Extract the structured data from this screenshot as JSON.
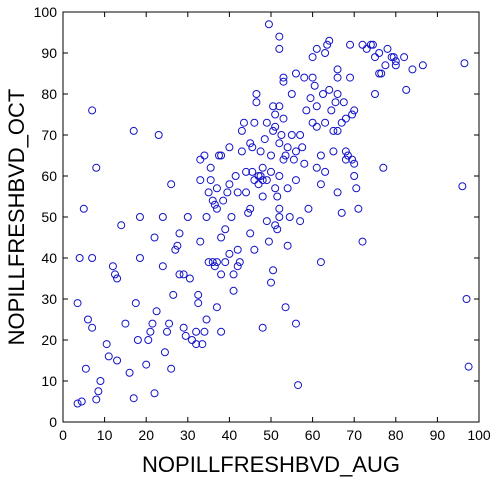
{
  "chart_data": {
    "type": "scatter",
    "xlabel": "NOPILLFRESHBVD_AUG",
    "ylabel": "NOPILLFRESHBVD_OCT",
    "xlim": [
      0,
      100
    ],
    "ylim": [
      0,
      100
    ],
    "xticks": [
      "0",
      "10",
      "20",
      "30",
      "40",
      "50",
      "60",
      "70",
      "80",
      "90",
      "100"
    ],
    "yticks": [
      "0",
      "10",
      "20",
      "30",
      "40",
      "50",
      "60",
      "70",
      "80",
      "90",
      "100"
    ],
    "grid": false,
    "marker": "circle",
    "color": "#1414c8",
    "points": [
      [
        3.5,
        4.5
      ],
      [
        4.5,
        5
      ],
      [
        4,
        40
      ],
      [
        3.5,
        29
      ],
      [
        5.5,
        13
      ],
      [
        5,
        52
      ],
      [
        7,
        40
      ],
      [
        6,
        25
      ],
      [
        7,
        23
      ],
      [
        7,
        76
      ],
      [
        8,
        62
      ],
      [
        8,
        5.5
      ],
      [
        8.5,
        7.5
      ],
      [
        9,
        10
      ],
      [
        10.5,
        19
      ],
      [
        11,
        16
      ],
      [
        12,
        38
      ],
      [
        12.5,
        36
      ],
      [
        13,
        35
      ],
      [
        13,
        15
      ],
      [
        14,
        48
      ],
      [
        15,
        24
      ],
      [
        16,
        12
      ],
      [
        17,
        5.8
      ],
      [
        17,
        71
      ],
      [
        17.5,
        29
      ],
      [
        18,
        20
      ],
      [
        18.5,
        50
      ],
      [
        18.5,
        40
      ],
      [
        20,
        14
      ],
      [
        20.5,
        20
      ],
      [
        21,
        22
      ],
      [
        21.5,
        24
      ],
      [
        22,
        7
      ],
      [
        22,
        45
      ],
      [
        22.5,
        27
      ],
      [
        23,
        70
      ],
      [
        24,
        38
      ],
      [
        24,
        50
      ],
      [
        24.5,
        17
      ],
      [
        25,
        22
      ],
      [
        25.5,
        24
      ],
      [
        26,
        58
      ],
      [
        26,
        13
      ],
      [
        26.5,
        31
      ],
      [
        27,
        42
      ],
      [
        27.5,
        43
      ],
      [
        28,
        36
      ],
      [
        28,
        46
      ],
      [
        29,
        36
      ],
      [
        29,
        23
      ],
      [
        29.5,
        21
      ],
      [
        30,
        50
      ],
      [
        30.5,
        35
      ],
      [
        31,
        20
      ],
      [
        32,
        19
      ],
      [
        32,
        22
      ],
      [
        32.5,
        29
      ],
      [
        32.5,
        31
      ],
      [
        33,
        64
      ],
      [
        33,
        59
      ],
      [
        33,
        44
      ],
      [
        33.5,
        19
      ],
      [
        34,
        65
      ],
      [
        34,
        22
      ],
      [
        34.5,
        50
      ],
      [
        34.5,
        25
      ],
      [
        35,
        56
      ],
      [
        35,
        39
      ],
      [
        35.5,
        59
      ],
      [
        35.5,
        62
      ],
      [
        36,
        54
      ],
      [
        36,
        39
      ],
      [
        36.5,
        53
      ],
      [
        36.5,
        38
      ],
      [
        37,
        57
      ],
      [
        37,
        52
      ],
      [
        37,
        39
      ],
      [
        37,
        28
      ],
      [
        37.5,
        65
      ],
      [
        38,
        65
      ],
      [
        38,
        45
      ],
      [
        38,
        36
      ],
      [
        38,
        22
      ],
      [
        38.5,
        54
      ],
      [
        39,
        47
      ],
      [
        39,
        39
      ],
      [
        39.5,
        56
      ],
      [
        40,
        67
      ],
      [
        40,
        58
      ],
      [
        40,
        41
      ],
      [
        40.5,
        50
      ],
      [
        41,
        36
      ],
      [
        41,
        32
      ],
      [
        41.5,
        60
      ],
      [
        42,
        38
      ],
      [
        42,
        56
      ],
      [
        42,
        42
      ],
      [
        42.5,
        39
      ],
      [
        43,
        71
      ],
      [
        43,
        66
      ],
      [
        43.5,
        73
      ],
      [
        44,
        61
      ],
      [
        44,
        56
      ],
      [
        44.5,
        51
      ],
      [
        45,
        68
      ],
      [
        45,
        52
      ],
      [
        45,
        46
      ],
      [
        45.5,
        61
      ],
      [
        45.5,
        67
      ],
      [
        46,
        73
      ],
      [
        46,
        59
      ],
      [
        46,
        42
      ],
      [
        46.5,
        80
      ],
      [
        46.5,
        78
      ],
      [
        47,
        60
      ],
      [
        47,
        58
      ],
      [
        47.5,
        66
      ],
      [
        47.5,
        60
      ],
      [
        48,
        62
      ],
      [
        48,
        55
      ],
      [
        48,
        59
      ],
      [
        48,
        23
      ],
      [
        48.5,
        69
      ],
      [
        49,
        73
      ],
      [
        49,
        59
      ],
      [
        49,
        49
      ],
      [
        49.5,
        97
      ],
      [
        49.5,
        44
      ],
      [
        50,
        65
      ],
      [
        50,
        61
      ],
      [
        50,
        34
      ],
      [
        50.5,
        77
      ],
      [
        50.5,
        71
      ],
      [
        50.5,
        37
      ],
      [
        51,
        75
      ],
      [
        51,
        72
      ],
      [
        51,
        57
      ],
      [
        51,
        48
      ],
      [
        51.5,
        47
      ],
      [
        51.5,
        55
      ],
      [
        52,
        91
      ],
      [
        52,
        94
      ],
      [
        52,
        77
      ],
      [
        52,
        68
      ],
      [
        52,
        60
      ],
      [
        52,
        52
      ],
      [
        52,
        50
      ],
      [
        52.5,
        70
      ],
      [
        53,
        84
      ],
      [
        53,
        83
      ],
      [
        53,
        74
      ],
      [
        53,
        64
      ],
      [
        53.5,
        65
      ],
      [
        53.5,
        28
      ],
      [
        54,
        67
      ],
      [
        54,
        57
      ],
      [
        54,
        43
      ],
      [
        54.5,
        50
      ],
      [
        55,
        80
      ],
      [
        55,
        70
      ],
      [
        55.5,
        64
      ],
      [
        56,
        85
      ],
      [
        56,
        66
      ],
      [
        56,
        59
      ],
      [
        56,
        24
      ],
      [
        56.5,
        9
      ],
      [
        57,
        70
      ],
      [
        57,
        49
      ],
      [
        57.5,
        67
      ],
      [
        58,
        84
      ],
      [
        58,
        63
      ],
      [
        58.5,
        76
      ],
      [
        59,
        52
      ],
      [
        59.5,
        79
      ],
      [
        60,
        89
      ],
      [
        60,
        84
      ],
      [
        60,
        73
      ],
      [
        60.5,
        82
      ],
      [
        61,
        91
      ],
      [
        61,
        77
      ],
      [
        61,
        72
      ],
      [
        61,
        62
      ],
      [
        62,
        65
      ],
      [
        62,
        58
      ],
      [
        62,
        39
      ],
      [
        62.5,
        80
      ],
      [
        63,
        90
      ],
      [
        63,
        73
      ],
      [
        63,
        61
      ],
      [
        63.5,
        92
      ],
      [
        64,
        93
      ],
      [
        64,
        81
      ],
      [
        64.5,
        76
      ],
      [
        65,
        71
      ],
      [
        65,
        66
      ],
      [
        65.5,
        78
      ],
      [
        66,
        86
      ],
      [
        66,
        84
      ],
      [
        66,
        80
      ],
      [
        66,
        71
      ],
      [
        66,
        56
      ],
      [
        67,
        73
      ],
      [
        67,
        51
      ],
      [
        67.5,
        78
      ],
      [
        68,
        74
      ],
      [
        68,
        66
      ],
      [
        68,
        64
      ],
      [
        68.5,
        65
      ],
      [
        69,
        92
      ],
      [
        69,
        84
      ],
      [
        69.5,
        75
      ],
      [
        69.5,
        64
      ],
      [
        70,
        76
      ],
      [
        70,
        63
      ],
      [
        70,
        60
      ],
      [
        70.5,
        57
      ],
      [
        71,
        52
      ],
      [
        72,
        92
      ],
      [
        72,
        44
      ],
      [
        73,
        91
      ],
      [
        74,
        92
      ],
      [
        74.5,
        92
      ],
      [
        75,
        89
      ],
      [
        75,
        80
      ],
      [
        76,
        90
      ],
      [
        76,
        85
      ],
      [
        76.5,
        85
      ],
      [
        77,
        62
      ],
      [
        77.5,
        87
      ],
      [
        78,
        91
      ],
      [
        79,
        89
      ],
      [
        79.5,
        89
      ],
      [
        80,
        87
      ],
      [
        80,
        88
      ],
      [
        82,
        89
      ],
      [
        82.5,
        81
      ],
      [
        84,
        86
      ],
      [
        86.5,
        87
      ],
      [
        96,
        57.5
      ],
      [
        96.5,
        87.5
      ],
      [
        97,
        30
      ],
      [
        97.5,
        13.5
      ]
    ]
  }
}
